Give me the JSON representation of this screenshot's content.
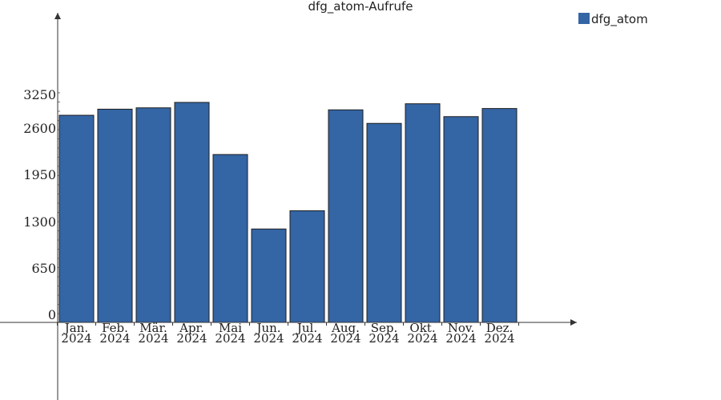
{
  "chart_data": {
    "type": "bar",
    "title": "dfg_atom-Aufrufe",
    "xlabel": "",
    "ylabel": "",
    "categories": [
      "Jan.\n2024",
      "Feb.\n2024",
      "Mär.\n2024",
      "Apr.\n2024",
      "Mai\n2024",
      "Jun.\n2024",
      "Jul.\n2024",
      "Aug.\n2024",
      "Sep.\n2024",
      "Okt.\n2024",
      "Nov.\n2024",
      "Dez.\n2024"
    ],
    "series": [
      {
        "name": "dfg_atom",
        "color": "#3465a4",
        "values": [
          3060,
          3150,
          3170,
          3250,
          2480,
          1380,
          1650,
          3140,
          2940,
          3230,
          3040,
          3160
        ]
      }
    ],
    "yticks": [
      "0",
      "650",
      "1300",
      "1950",
      "2600",
      "3250"
    ],
    "ylim": [
      0,
      3250
    ],
    "grid": false,
    "legend_position": "top-right"
  }
}
